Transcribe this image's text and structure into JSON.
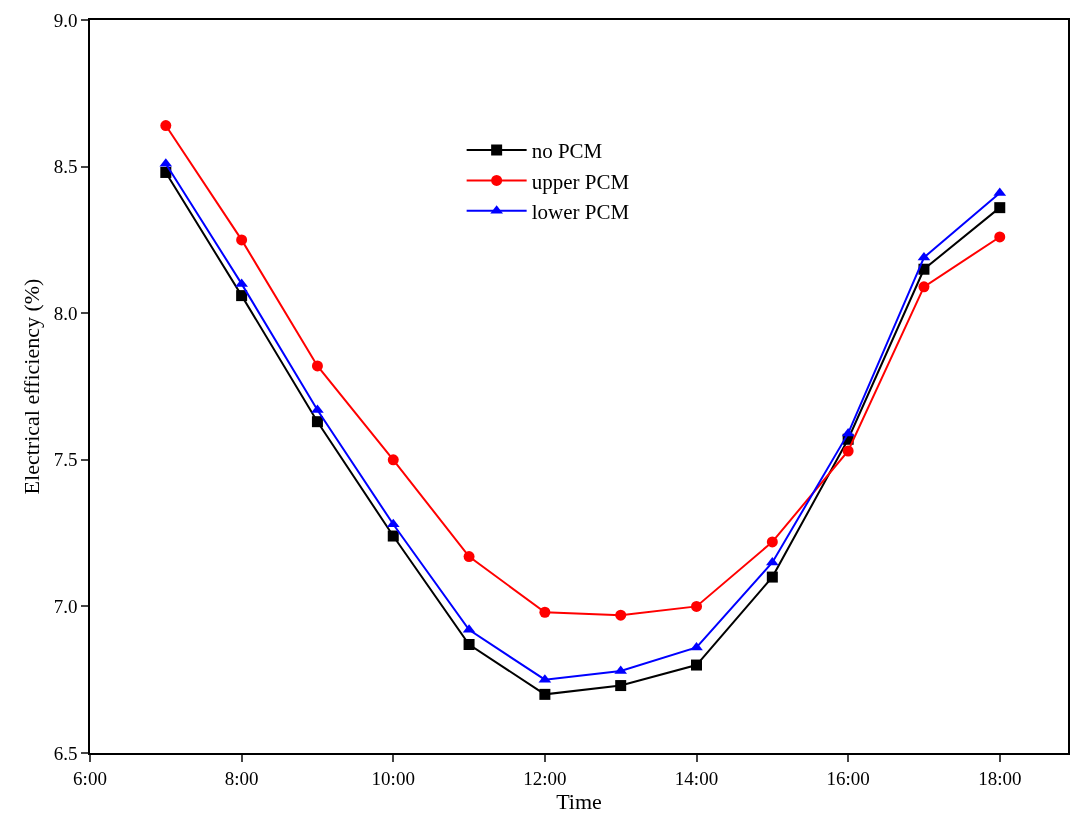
{
  "chart_data": {
    "type": "line",
    "xlabel": "Time",
    "ylabel": "Electrical efficiency (%)",
    "x": [
      7,
      8,
      9,
      10,
      11,
      12,
      13,
      14,
      15,
      16,
      17,
      18
    ],
    "series": [
      {
        "name": "no PCM",
        "color": "#000000",
        "marker": "square",
        "values": [
          8.48,
          8.06,
          7.63,
          7.24,
          6.87,
          6.7,
          6.73,
          6.8,
          7.1,
          7.57,
          8.15,
          8.36
        ]
      },
      {
        "name": "upper PCM",
        "color": "#ff0000",
        "marker": "circle",
        "values": [
          8.64,
          8.25,
          7.82,
          7.5,
          7.17,
          6.98,
          6.97,
          7.0,
          7.22,
          7.53,
          8.09,
          8.26
        ]
      },
      {
        "name": "lower PCM",
        "color": "#0000ff",
        "marker": "triangle",
        "values": [
          8.51,
          8.1,
          7.67,
          7.28,
          6.92,
          6.75,
          6.78,
          6.86,
          7.15,
          7.59,
          8.19,
          8.41
        ]
      }
    ],
    "xlim": [
      6,
      18.9
    ],
    "xticks": [
      {
        "value": 6,
        "label": "6:00"
      },
      {
        "value": 8,
        "label": "8:00"
      },
      {
        "value": 10,
        "label": "10:00"
      },
      {
        "value": 12,
        "label": "12:00"
      },
      {
        "value": 14,
        "label": "14:00"
      },
      {
        "value": 16,
        "label": "16:00"
      },
      {
        "value": 18,
        "label": "18:00"
      }
    ],
    "ylim": [
      6.5,
      9.0
    ],
    "yticks": [
      {
        "value": 6.5,
        "label": "6.5"
      },
      {
        "value": 7.0,
        "label": "7.0"
      },
      {
        "value": 7.5,
        "label": "7.5"
      },
      {
        "value": 8.0,
        "label": "8.0"
      },
      {
        "value": 8.5,
        "label": "8.5"
      },
      {
        "value": 9.0,
        "label": "9.0"
      }
    ],
    "legend": "top",
    "line_style": "solid"
  }
}
